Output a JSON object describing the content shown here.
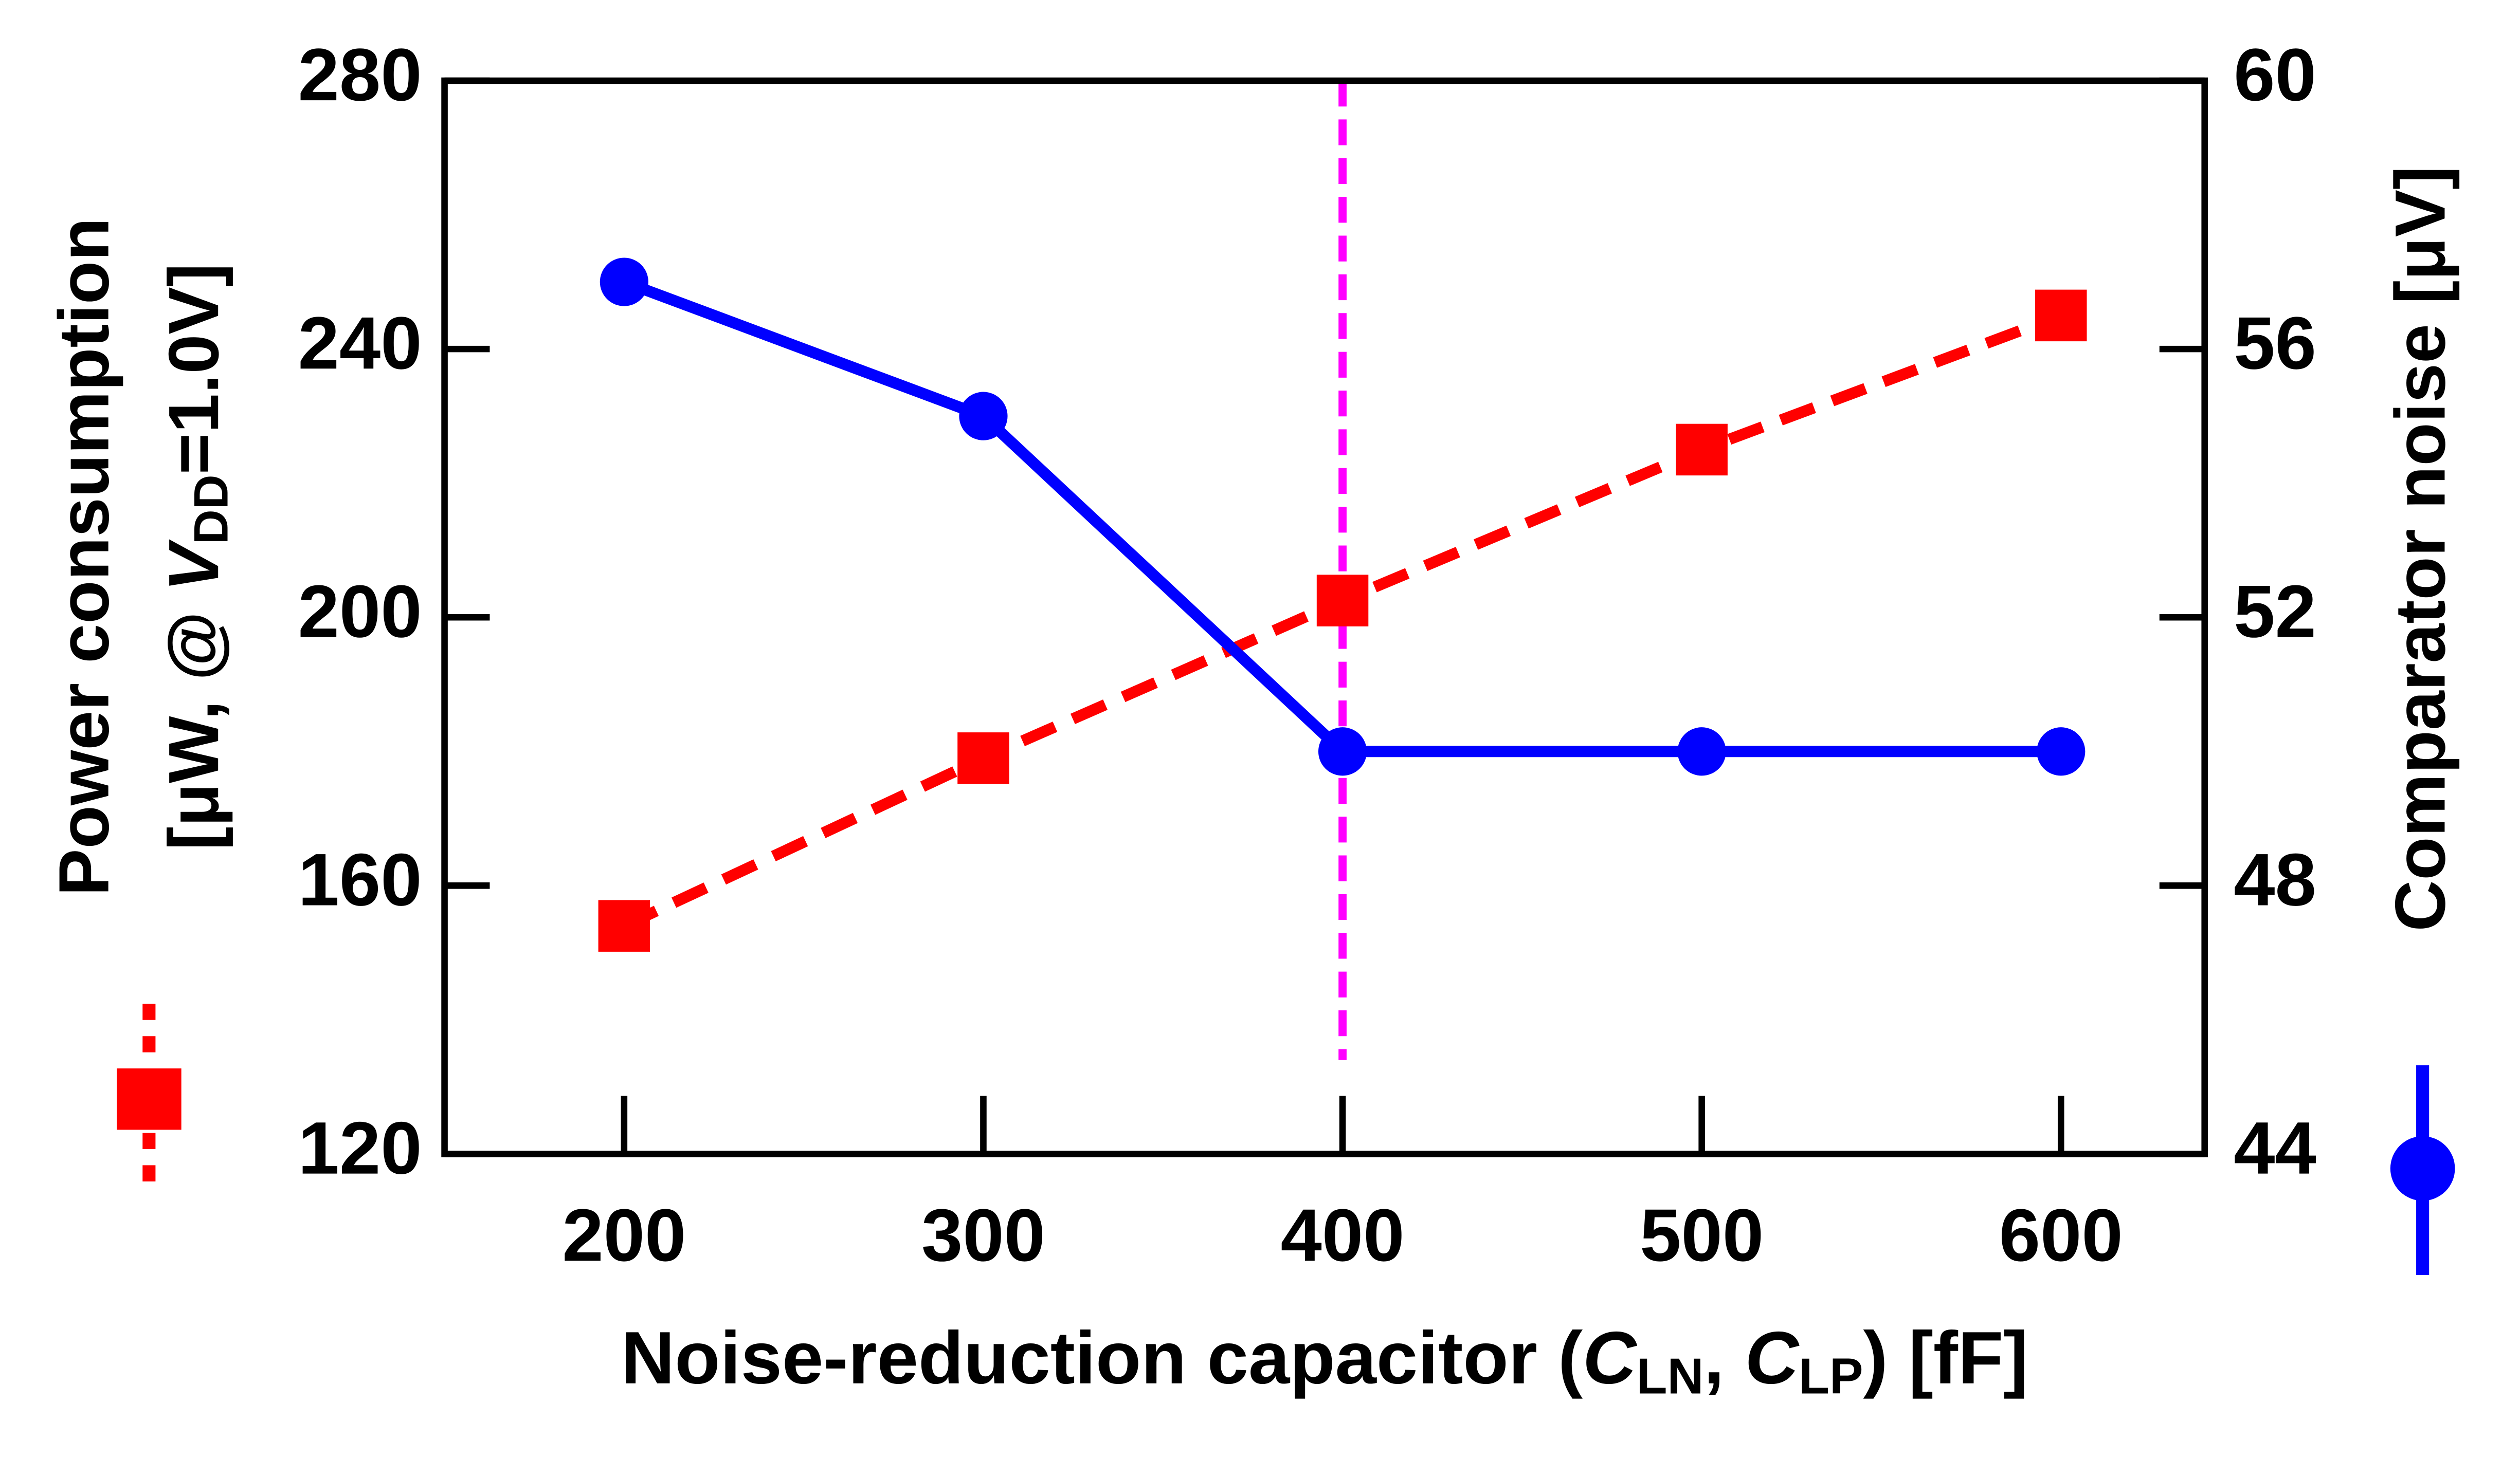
{
  "chart_data": {
    "type": "line",
    "x": [
      200,
      300,
      400,
      500,
      600
    ],
    "xlim": [
      150,
      640
    ],
    "xticks": [
      200,
      300,
      400,
      500,
      600
    ],
    "ylim": [
      120,
      280
    ],
    "yticks": [
      120,
      160,
      200,
      240,
      280
    ],
    "y2lim": [
      44,
      60
    ],
    "y2ticks": [
      44,
      48,
      52,
      56,
      60
    ],
    "xlabel_parts": [
      {
        "text": "Noise-reduction capacitor (",
        "style": "normal"
      },
      {
        "text": "C",
        "style": "italic"
      },
      {
        "text": "LN",
        "style": "sub"
      },
      {
        "text": ", ",
        "style": "normal"
      },
      {
        "text": "C",
        "style": "italic"
      },
      {
        "text": "LP",
        "style": "sub"
      },
      {
        "text": ") [fF]",
        "style": "normal"
      }
    ],
    "ylabel_lines": [
      [
        {
          "text": "Power consumption",
          "style": "normal"
        }
      ],
      [
        {
          "text": "[μW, @ ",
          "style": "normal"
        },
        {
          "text": "V",
          "style": "italic"
        },
        {
          "text": "DD",
          "style": "sub"
        },
        {
          "text": "=1.0V]",
          "style": "normal"
        }
      ]
    ],
    "y2label": "Comparator noise [μV]",
    "series": [
      {
        "name": "Power consumption",
        "color": "#ff0000",
        "dash": true,
        "marker": "square",
        "values": [
          154,
          179,
          202.5,
          225,
          245
        ]
      },
      {
        "name": "Comparator noise",
        "color": "#0000ff",
        "dash": false,
        "marker": "circle",
        "axis": "y2",
        "values": [
          57,
          55,
          50,
          50,
          50
        ]
      }
    ],
    "vline": {
      "x": 400,
      "ymin": 134,
      "color": "#ff00ff"
    }
  }
}
